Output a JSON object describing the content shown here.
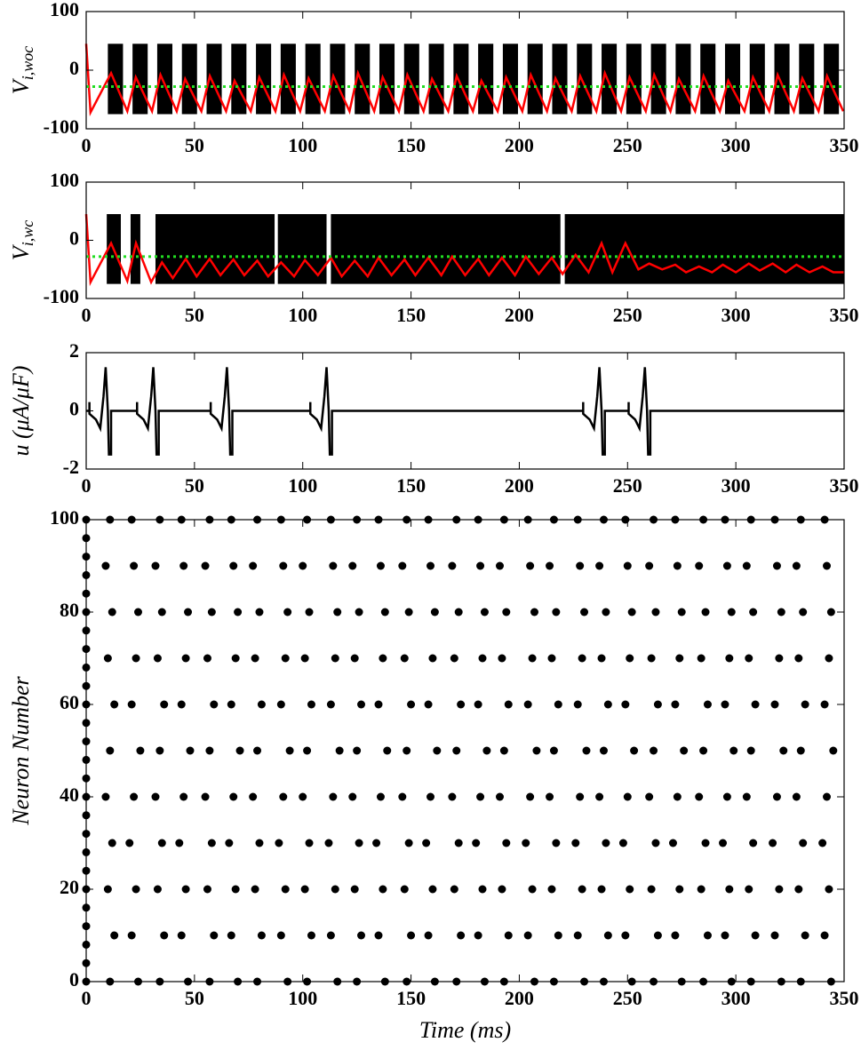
{
  "chart_data": [
    {
      "type": "line",
      "ylabel": "V",
      "ylabel_sub": "i,woc",
      "xlim": [
        0,
        350
      ],
      "xticks": [
        0,
        50,
        100,
        150,
        200,
        250,
        300,
        350
      ],
      "ylim": [
        -100,
        100
      ],
      "yticks": [
        -100,
        0,
        100
      ],
      "bursts": {
        "color": "#000000",
        "low": -75,
        "high": 45,
        "x_start": [
          10,
          21.4,
          32.8,
          44.2,
          55.6,
          67,
          78.4,
          89.8,
          101.2,
          112.6,
          124,
          135.4,
          146.8,
          158.2,
          169.6,
          181,
          192.4,
          203.8,
          215.2,
          226.6,
          238,
          249.4,
          260.8,
          272.2,
          283.6,
          295,
          306.4,
          317.8,
          329.2,
          340.6
        ],
        "x_end": [
          17,
          28.4,
          39.8,
          51.2,
          62.6,
          74,
          85.4,
          96.8,
          108.2,
          119.6,
          131,
          142.4,
          153.8,
          165.2,
          176.6,
          188,
          199.4,
          210.8,
          222.2,
          233.6,
          245,
          256.4,
          267.8,
          279.2,
          290.6,
          302,
          313.4,
          324.8,
          336.2,
          347.6
        ]
      },
      "series": [
        {
          "color": "#ff0000",
          "style": "solid",
          "x": [
            0,
            2,
            11.5,
            19,
            22.9,
            30.4,
            34.3,
            41.8,
            45.7,
            53.2,
            57.1,
            64.6,
            68.5,
            76,
            79.9,
            87.4,
            91.3,
            98.8,
            102.7,
            110.2,
            114.1,
            121.6,
            125.5,
            133,
            136.9,
            144.4,
            148.3,
            155.8,
            159.7,
            167.2,
            171.1,
            178.6,
            182.5,
            190,
            193.9,
            201.4,
            205.3,
            212.8,
            216.7,
            224.2,
            228.1,
            235.6,
            239.5,
            247,
            250.9,
            258.4,
            262.3,
            269.8,
            273.7,
            281.2,
            285.1,
            292.6,
            296.5,
            304,
            307.9,
            315.4,
            319.3,
            326.8,
            330.7,
            338.2,
            342.1,
            349.6
          ],
          "values": [
            45,
            -72,
            -5,
            -70,
            -12,
            -70,
            -8,
            -70,
            -15,
            -70,
            -10,
            -70,
            -18,
            -70,
            -12,
            -70,
            -8,
            -70,
            -14,
            -70,
            -10,
            -70,
            -5,
            -70,
            -12,
            -70,
            -8,
            -70,
            -15,
            -70,
            -10,
            -70,
            -18,
            -70,
            -12,
            -70,
            -8,
            -70,
            -14,
            -70,
            -10,
            -70,
            -5,
            -70,
            -12,
            -70,
            -8,
            -70,
            -15,
            -70,
            -10,
            -70,
            -18,
            -70,
            -12,
            -70,
            -8,
            -70,
            -14,
            -70,
            -10,
            -70
          ]
        },
        {
          "color": "#22dd22",
          "style": "dotted",
          "x": [
            0,
            350
          ],
          "values": [
            -28,
            -28
          ]
        }
      ]
    },
    {
      "type": "line",
      "ylabel": "V",
      "ylabel_sub": "i,wc",
      "xlim": [
        0,
        350
      ],
      "xticks": [
        0,
        50,
        100,
        150,
        200,
        250,
        300,
        350
      ],
      "ylim": [
        -100,
        100
      ],
      "yticks": [
        -100,
        0,
        100
      ],
      "bursts": {
        "color": "#000000",
        "low": -75,
        "high": 45,
        "x_start": [
          9.5,
          20.5,
          32,
          88.5,
          113,
          221
        ],
        "x_end": [
          16,
          25,
          87,
          111,
          219,
          350
        ]
      },
      "series": [
        {
          "color": "#ff0000",
          "style": "solid",
          "x": [
            0,
            2,
            11.5,
            19,
            23,
            30,
            35,
            40,
            46,
            51,
            57,
            62,
            68,
            73,
            79,
            84,
            90,
            96,
            101,
            107,
            113,
            118,
            124,
            130,
            135,
            141,
            147,
            152,
            158,
            164,
            169,
            175,
            181,
            186,
            192,
            198,
            203,
            209,
            215,
            220,
            226,
            232,
            238,
            243,
            249,
            255,
            260,
            266,
            272,
            277,
            283,
            289,
            294,
            300,
            306,
            311,
            317,
            323,
            328,
            334,
            340,
            345,
            350
          ],
          "values": [
            45,
            -72,
            -5,
            -70,
            -5,
            -72,
            -38,
            -65,
            -32,
            -62,
            -32,
            -60,
            -33,
            -60,
            -35,
            -62,
            -38,
            -62,
            -34,
            -60,
            -30,
            -62,
            -35,
            -62,
            -30,
            -60,
            -33,
            -60,
            -30,
            -60,
            -28,
            -60,
            -32,
            -60,
            -30,
            -60,
            -28,
            -58,
            -30,
            -58,
            -25,
            -55,
            -5,
            -55,
            -5,
            -50,
            -40,
            -50,
            -42,
            -55,
            -45,
            -55,
            -42,
            -55,
            -40,
            -52,
            -40,
            -55,
            -42,
            -55,
            -45,
            -55,
            -55
          ]
        },
        {
          "color": "#22dd22",
          "style": "dotted",
          "x": [
            0,
            350
          ],
          "values": [
            -28,
            -28
          ]
        }
      ]
    },
    {
      "type": "line",
      "ylabel": "u (μA/μF)",
      "xlim": [
        0,
        350
      ],
      "xticks": [
        0,
        50,
        100,
        150,
        200,
        250,
        300,
        350
      ],
      "ylim": [
        -2,
        2
      ],
      "yticks": [
        -2,
        0,
        2
      ],
      "series": [
        {
          "color": "#000000",
          "style": "solid",
          "x": [
            0,
            1.5,
            1.5,
            1.5,
            4.5,
            6.5,
            8,
            9,
            10,
            10.5,
            11.5,
            11.5,
            23.5,
            23.5,
            23.5,
            26.5,
            28.5,
            30,
            31,
            32,
            32.5,
            33.5,
            33.5,
            57.5,
            57.5,
            57.5,
            60.5,
            62.5,
            64,
            65,
            66,
            66.5,
            67.5,
            67.5,
            103.5,
            103.5,
            103.5,
            106.5,
            108.5,
            110,
            111,
            112,
            112.5,
            113.5,
            113.5,
            229.5,
            229.5,
            229.5,
            232.5,
            234.5,
            236,
            237,
            238,
            238.5,
            239.5,
            239.5,
            250.5,
            250.5,
            250.5,
            253.5,
            255.5,
            257,
            258,
            259,
            259.5,
            260.5,
            260.5,
            350
          ],
          "values": [
            0,
            0,
            0.3,
            -0.1,
            -0.3,
            -0.6,
            0.5,
            1.5,
            0,
            -1.5,
            -1.5,
            0,
            0,
            0.3,
            -0.1,
            -0.3,
            -0.6,
            0.5,
            1.5,
            0,
            -1.5,
            -1.5,
            0,
            0,
            0.3,
            -0.1,
            -0.3,
            -0.6,
            0.5,
            1.5,
            0,
            -1.5,
            -1.5,
            0,
            0,
            0.3,
            -0.1,
            -0.3,
            -0.6,
            0.5,
            1.5,
            0,
            -1.5,
            -1.5,
            0,
            0,
            0.3,
            -0.1,
            -0.3,
            -0.6,
            0.5,
            1.5,
            0,
            -1.5,
            -1.5,
            0,
            0,
            0.3,
            -0.1,
            -0.3,
            -0.6,
            0.5,
            1.5,
            0,
            -1.5,
            -1.5,
            0,
            0
          ]
        }
      ]
    },
    {
      "type": "scatter",
      "ylabel": "Neuron Number",
      "xlabel": "Time (ms)",
      "color": "#000000",
      "xlim": [
        0,
        350
      ],
      "xticks": [
        0,
        50,
        100,
        150,
        200,
        250,
        300,
        350
      ],
      "ylim": [
        0,
        100
      ],
      "yticks": [
        0,
        20,
        40,
        60,
        80,
        100
      ],
      "x": [
        0,
        0,
        0,
        0,
        0,
        0,
        0,
        0,
        0,
        0,
        0,
        0,
        0,
        0,
        0,
        0,
        0,
        0,
        0,
        0,
        0,
        0,
        0,
        0,
        0,
        0,
        11,
        13,
        10,
        12,
        9,
        11,
        13,
        10,
        12,
        9,
        11,
        24,
        21,
        23,
        20,
        22,
        25,
        21,
        23,
        24,
        22,
        21,
        34,
        36,
        33,
        35,
        32,
        34,
        36,
        33,
        35,
        32,
        34,
        47,
        44,
        46,
        43,
        45,
        48,
        44,
        46,
        47,
        45,
        44,
        57,
        59,
        56,
        58,
        55,
        57,
        59,
        56,
        58,
        55,
        57,
        70,
        67,
        69,
        66,
        68,
        71,
        67,
        69,
        70,
        68,
        67,
        79,
        81,
        78,
        80,
        77,
        79,
        81,
        78,
        80,
        77,
        79,
        93,
        90,
        92,
        89,
        91,
        94,
        90,
        92,
        93,
        91,
        90,
        102,
        104,
        101,
        103,
        100,
        102,
        104,
        101,
        103,
        100,
        102,
        116,
        113,
        115,
        112,
        114,
        117,
        113,
        115,
        116,
        114,
        113,
        125,
        127,
        124,
        126,
        123,
        125,
        127,
        124,
        126,
        123,
        125,
        138,
        135,
        137,
        134,
        136,
        139,
        135,
        137,
        138,
        136,
        135,
        148,
        150,
        147,
        149,
        146,
        148,
        150,
        147,
        149,
        146,
        148,
        161,
        158,
        160,
        157,
        159,
        162,
        158,
        160,
        161,
        159,
        158,
        171,
        173,
        170,
        172,
        169,
        171,
        173,
        170,
        172,
        169,
        171,
        184,
        181,
        183,
        180,
        182,
        185,
        181,
        183,
        184,
        182,
        181,
        193,
        195,
        192,
        194,
        191,
        193,
        195,
        192,
        194,
        191,
        193,
        207,
        204,
        206,
        203,
        205,
        208,
        204,
        206,
        207,
        205,
        204,
        216,
        218,
        215,
        217,
        214,
        216,
        218,
        215,
        217,
        214,
        216,
        230,
        227,
        229,
        226,
        228,
        231,
        227,
        229,
        230,
        228,
        227,
        239,
        241,
        238,
        240,
        237,
        239,
        241,
        238,
        240,
        237,
        239,
        252,
        249,
        251,
        248,
        250,
        253,
        249,
        251,
        252,
        250,
        249,
        262,
        264,
        261,
        263,
        260,
        262,
        264,
        261,
        263,
        260,
        262,
        275,
        272,
        274,
        271,
        273,
        276,
        272,
        274,
        275,
        273,
        272,
        285,
        287,
        284,
        286,
        283,
        285,
        287,
        284,
        286,
        283,
        285,
        298,
        295,
        297,
        294,
        296,
        299,
        295,
        297,
        298,
        296,
        295,
        307,
        309,
        306,
        308,
        305,
        307,
        309,
        306,
        308,
        305,
        307,
        321,
        318,
        320,
        317,
        319,
        322,
        318,
        320,
        321,
        319,
        318,
        330,
        332,
        329,
        331,
        328,
        330,
        332,
        329,
        331,
        328,
        330,
        344,
        341,
        343,
        340,
        342,
        345,
        341,
        343,
        344,
        342,
        341
      ],
      "y": [
        0,
        4,
        8,
        12,
        16,
        20,
        24,
        28,
        32,
        36,
        40,
        44,
        48,
        52,
        56,
        60,
        64,
        68,
        72,
        76,
        80,
        84,
        88,
        92,
        96,
        100,
        0,
        10,
        20,
        30,
        40,
        50,
        60,
        70,
        80,
        90,
        100,
        0,
        10,
        20,
        30,
        40,
        50,
        60,
        70,
        80,
        90,
        100,
        0,
        10,
        20,
        30,
        40,
        50,
        60,
        70,
        80,
        90,
        100,
        0,
        10,
        20,
        30,
        40,
        50,
        60,
        70,
        80,
        90,
        100,
        0,
        10,
        20,
        30,
        40,
        50,
        60,
        70,
        80,
        90,
        100,
        0,
        10,
        20,
        30,
        40,
        50,
        60,
        70,
        80,
        90,
        100,
        0,
        10,
        20,
        30,
        40,
        50,
        60,
        70,
        80,
        90,
        100,
        0,
        10,
        20,
        30,
        40,
        50,
        60,
        70,
        80,
        90,
        100,
        0,
        10,
        20,
        30,
        40,
        50,
        60,
        70,
        80,
        90,
        100,
        0,
        10,
        20,
        30,
        40,
        50,
        60,
        70,
        80,
        90,
        100,
        0,
        10,
        20,
        30,
        40,
        50,
        60,
        70,
        80,
        90,
        100,
        0,
        10,
        20,
        30,
        40,
        50,
        60,
        70,
        80,
        90,
        100,
        0,
        10,
        20,
        30,
        40,
        50,
        60,
        70,
        80,
        90,
        100,
        0,
        10,
        20,
        30,
        40,
        50,
        60,
        70,
        80,
        90,
        100,
        0,
        10,
        20,
        30,
        40,
        50,
        60,
        70,
        80,
        90,
        100,
        0,
        10,
        20,
        30,
        40,
        50,
        60,
        70,
        80,
        90,
        100,
        0,
        10,
        20,
        30,
        40,
        50,
        60,
        70,
        80,
        90,
        100,
        0,
        10,
        20,
        30,
        40,
        50,
        60,
        70,
        80,
        90,
        100,
        0,
        10,
        20,
        30,
        40,
        50,
        60,
        70,
        80,
        90,
        100,
        0,
        10,
        20,
        30,
        40,
        50,
        60,
        70,
        80,
        90,
        100,
        0,
        10,
        20,
        30,
        40,
        50,
        60,
        70,
        80,
        90,
        100,
        0,
        10,
        20,
        30,
        40,
        50,
        60,
        70,
        80,
        90,
        100,
        0,
        10,
        20,
        30,
        40,
        50,
        60,
        70,
        80,
        90,
        100,
        0,
        10,
        20,
        30,
        40,
        50,
        60,
        70,
        80,
        90,
        100,
        0,
        10,
        20,
        30,
        40,
        50,
        60,
        70,
        80,
        90,
        100,
        0,
        10,
        20,
        30,
        40,
        50,
        60,
        70,
        80,
        90,
        100,
        0,
        10,
        20,
        30,
        40,
        50,
        60,
        70,
        80,
        90,
        100,
        0,
        10,
        20,
        30,
        40,
        50,
        60,
        70,
        80,
        90,
        100,
        0,
        10,
        20,
        30,
        40,
        50,
        60,
        70,
        80,
        90,
        100,
        0,
        10,
        20,
        30,
        40,
        50,
        60,
        70,
        80,
        90,
        100
      ]
    }
  ]
}
